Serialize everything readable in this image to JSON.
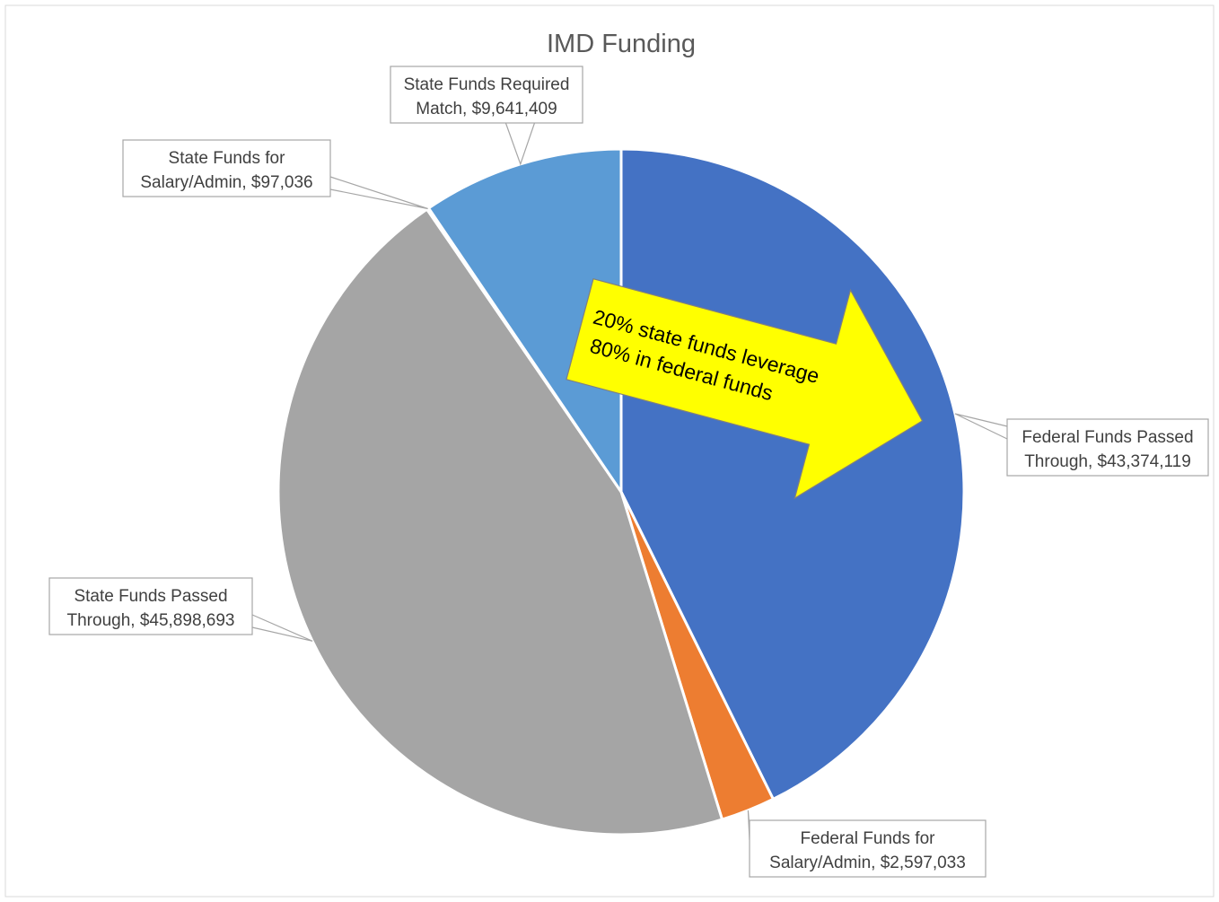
{
  "chart_data": {
    "type": "pie",
    "title": "IMD Funding",
    "slices": [
      {
        "label_line1": "Federal Funds Passed",
        "label_line2": "Through,",
        "value_text": "$43,374,119",
        "value": 43374119,
        "color": "#4472C4"
      },
      {
        "label_line1": "Federal Funds for",
        "label_line2": "Salary/Admin,",
        "value_text": "$2,597,033",
        "value": 2597033,
        "color": "#ED7D31"
      },
      {
        "label_line1": "State Funds Passed",
        "label_line2": "Through,",
        "value_text": "$45,898,693",
        "value": 45898693,
        "color": "#A5A5A5"
      },
      {
        "label_line1": "State Funds for",
        "label_line2": "Salary/Admin,",
        "value_text": "$97,036",
        "value": 97036,
        "color": "#FFC000"
      },
      {
        "label_line1": "State Funds Required",
        "label_line2": "Match,",
        "value_text": "$9,641,409",
        "value": 9641409,
        "color": "#5B9BD5"
      }
    ],
    "annotation": {
      "line1": "20% state funds leverage",
      "line2": "80% in federal funds",
      "color": "#FFFF00"
    },
    "legend": "none"
  }
}
